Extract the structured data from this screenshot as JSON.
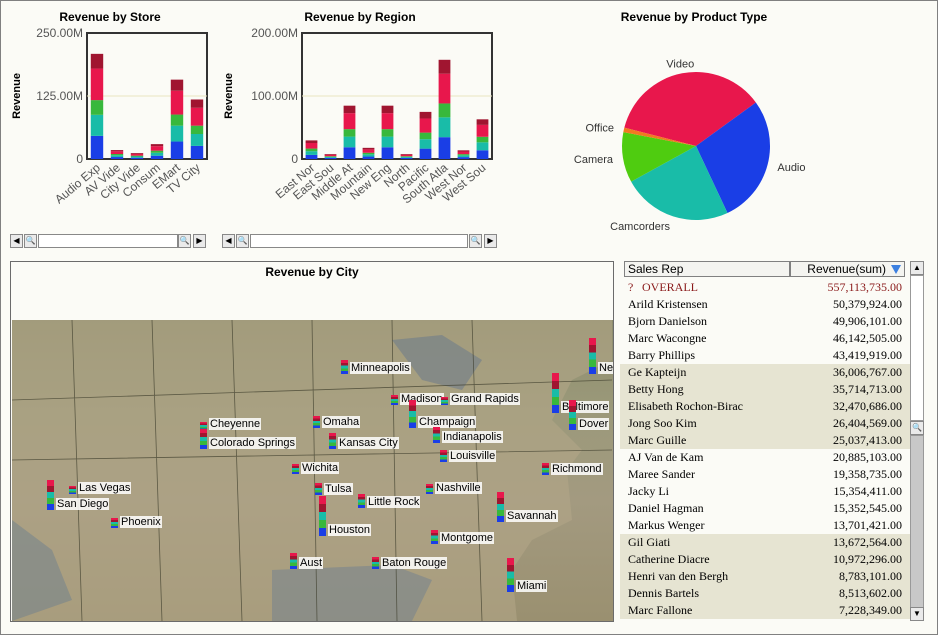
{
  "colors": {
    "blue": "#1a3ee6",
    "teal": "#19bca8",
    "green": "#38b83c",
    "red": "#e8174c",
    "darkred": "#a01530",
    "orange": "#f07a20",
    "lime": "#4fcc10"
  },
  "store_chart": {
    "chart_data": {
      "type": "bar",
      "title": "Revenue by Store",
      "ylabel": "Revenue",
      "yticks": [
        "250.00M",
        "125.00M",
        "0"
      ],
      "ylim": [
        0,
        250
      ],
      "categories": [
        "Audio Exp",
        "AV Vide",
        "City Vide",
        "Consum",
        "EMart",
        "TV City"
      ],
      "values": [
        212,
        18,
        12,
        30,
        160,
        120
      ]
    }
  },
  "region_chart": {
    "chart_data": {
      "type": "bar",
      "title": "Revenue by Region",
      "ylabel": "Revenue",
      "yticks": [
        "200.00M",
        "100.00M",
        "0"
      ],
      "ylim": [
        0,
        200
      ],
      "categories": [
        "East Nor",
        "East Sou",
        "Middle At",
        "Mountain",
        "New Eng",
        "North",
        "Pacific",
        "South Atla",
        "West Nor",
        "West Sou"
      ],
      "values": [
        30,
        8,
        86,
        18,
        86,
        8,
        76,
        160,
        14,
        64
      ]
    }
  },
  "product_chart": {
    "chart_data": {
      "type": "pie",
      "title": "Revenue by Product Type",
      "slices": [
        {
          "label": "Video",
          "value": 36,
          "color": "#e8174c"
        },
        {
          "label": "Audio",
          "value": 28,
          "color": "#1a3ee6"
        },
        {
          "label": "Camcorders",
          "value": 24,
          "color": "#19bca8"
        },
        {
          "label": "Camera",
          "value": 11,
          "color": "#4fcc10"
        },
        {
          "label": "Office",
          "value": 1,
          "color": "#f07a20"
        }
      ]
    }
  },
  "map": {
    "title": "Revenue by City",
    "cities": [
      "Minneapolis",
      "Madison",
      "Grand Rapids",
      "Cheyenne",
      "Omaha",
      "Champaign",
      "Colorado Springs",
      "Kansas City",
      "Indianapolis",
      "Louisville",
      "Wichita",
      "Tulsa",
      "Nashville",
      "Las Vegas",
      "San Diego",
      "Little Rock",
      "Phoenix",
      "Houston",
      "Montgome",
      "Savannah",
      "Aust",
      "Baton Rouge",
      "Miami",
      "Richmond",
      "Baltimore",
      "Dover",
      "Ne"
    ]
  },
  "table": {
    "col1": "Sales Rep",
    "col2": "Revenue(sum)",
    "sort_icon": "sort-desc-icon",
    "overall_marker": "?",
    "rows": [
      {
        "name": "OVERALL",
        "value": "557,113,735.00"
      },
      {
        "name": "Arild Kristensen",
        "value": "50,379,924.00"
      },
      {
        "name": "Bjorn Danielson",
        "value": "49,906,101.00"
      },
      {
        "name": "Marc Wacongne",
        "value": "46,142,505.00"
      },
      {
        "name": "Barry Phillips",
        "value": "43,419,919.00"
      },
      {
        "name": "Ge Kapteijn",
        "value": "36,006,767.00"
      },
      {
        "name": "Betty Hong",
        "value": "35,714,713.00"
      },
      {
        "name": "Elisabeth Rochon-Birac",
        "value": "32,470,686.00"
      },
      {
        "name": "Jong Soo Kim",
        "value": "26,404,569.00"
      },
      {
        "name": "Marc Guille",
        "value": "25,037,413.00"
      },
      {
        "name": "AJ Van de Kam",
        "value": "20,885,103.00"
      },
      {
        "name": "Maree Sander",
        "value": "19,358,735.00"
      },
      {
        "name": "Jacky Li",
        "value": "15,354,411.00"
      },
      {
        "name": "Daniel Hagman",
        "value": "15,352,545.00"
      },
      {
        "name": "Markus Wenger",
        "value": "13,701,421.00"
      },
      {
        "name": "Gil Giati",
        "value": "13,672,564.00"
      },
      {
        "name": "Catherine Diacre",
        "value": "10,972,296.00"
      },
      {
        "name": "Henri van den Bergh",
        "value": "8,783,101.00"
      },
      {
        "name": "Dennis Bartels",
        "value": "8,513,602.00"
      },
      {
        "name": "Marc Fallone",
        "value": "7,228,349.00"
      }
    ]
  }
}
